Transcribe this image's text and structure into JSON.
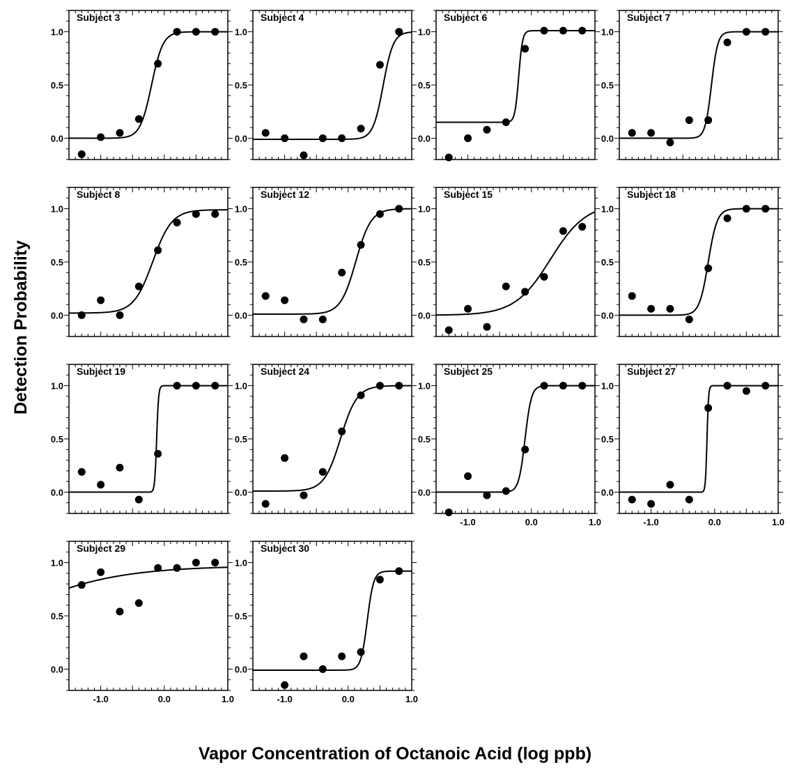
{
  "figure": {
    "xlabel": "Vapor Concentration of Octanoic Acid (log ppb)",
    "ylabel": "Detection Probability"
  },
  "chart_data": [
    {
      "type": "scatter",
      "title": "Subject 3",
      "xlim": [
        -1.5,
        1.0
      ],
      "ylim": [
        -0.2,
        1.2
      ],
      "yticks": [
        0.0,
        0.5,
        1.0
      ],
      "xticks": [],
      "line": "sigmoid",
      "curve": {
        "floor": 0.0,
        "top": 1.0,
        "x50": -0.2,
        "width": 0.09
      },
      "points": [
        [
          -1.3,
          -0.15
        ],
        [
          -1.0,
          0.01
        ],
        [
          -0.7,
          0.05
        ],
        [
          -0.4,
          0.18
        ],
        [
          -0.1,
          0.7
        ],
        [
          0.2,
          1.0
        ],
        [
          0.5,
          1.0
        ],
        [
          0.8,
          1.0
        ]
      ]
    },
    {
      "type": "scatter",
      "title": "Subject 4",
      "xlim": [
        -1.5,
        1.0
      ],
      "ylim": [
        -0.2,
        1.2
      ],
      "yticks": [
        0.0,
        0.5,
        1.0
      ],
      "xticks": [],
      "line": "sigmoid",
      "curve": {
        "floor": -0.01,
        "top": 1.0,
        "x50": 0.55,
        "width": 0.08
      },
      "points": [
        [
          -1.3,
          0.05
        ],
        [
          -1.0,
          0.0
        ],
        [
          -0.7,
          -0.16
        ],
        [
          -0.4,
          0.0
        ],
        [
          -0.1,
          0.0
        ],
        [
          0.2,
          0.09
        ],
        [
          0.5,
          0.69
        ],
        [
          0.8,
          1.0
        ]
      ]
    },
    {
      "type": "scatter",
      "title": "Subject 6",
      "xlim": [
        -1.5,
        1.0
      ],
      "ylim": [
        -0.2,
        1.2
      ],
      "yticks": [
        0.0,
        0.5,
        1.0
      ],
      "xticks": [],
      "line": "sigmoid",
      "curve": {
        "floor": 0.15,
        "top": 1.01,
        "x50": -0.2,
        "width": 0.03
      },
      "points": [
        [
          -1.3,
          -0.18
        ],
        [
          -1.0,
          0.0
        ],
        [
          -0.7,
          0.08
        ],
        [
          -0.4,
          0.15
        ],
        [
          -0.1,
          0.84
        ],
        [
          0.2,
          1.01
        ],
        [
          0.5,
          1.01
        ],
        [
          0.8,
          1.01
        ]
      ]
    },
    {
      "type": "scatter",
      "title": "Subject 7",
      "xlim": [
        -1.5,
        1.0
      ],
      "ylim": [
        -0.2,
        1.2
      ],
      "yticks": [
        0.0,
        0.5,
        1.0
      ],
      "xticks": [],
      "line": "sigmoid",
      "curve": {
        "floor": 0.0,
        "top": 1.0,
        "x50": -0.05,
        "width": 0.05
      },
      "points": [
        [
          -1.3,
          0.05
        ],
        [
          -1.0,
          0.05
        ],
        [
          -0.7,
          -0.04
        ],
        [
          -0.4,
          0.17
        ],
        [
          -0.1,
          0.17
        ],
        [
          0.2,
          0.9
        ],
        [
          0.5,
          1.0
        ],
        [
          0.8,
          1.0
        ]
      ]
    },
    {
      "type": "scatter",
      "title": "Subject 8",
      "xlim": [
        -1.5,
        1.0
      ],
      "ylim": [
        -0.2,
        1.2
      ],
      "yticks": [
        0.0,
        0.5,
        1.0
      ],
      "xticks": [],
      "line": "sigmoid",
      "curve": {
        "floor": 0.02,
        "top": 0.99,
        "x50": -0.18,
        "width": 0.15
      },
      "points": [
        [
          -1.3,
          0.0
        ],
        [
          -1.0,
          0.14
        ],
        [
          -0.7,
          0.0
        ],
        [
          -0.4,
          0.27
        ],
        [
          -0.1,
          0.61
        ],
        [
          0.2,
          0.87
        ],
        [
          0.5,
          0.95
        ],
        [
          0.8,
          0.95
        ]
      ]
    },
    {
      "type": "scatter",
      "title": "Subject 12",
      "xlim": [
        -1.5,
        1.0
      ],
      "ylim": [
        -0.2,
        1.2
      ],
      "yticks": [
        0.0,
        0.5,
        1.0
      ],
      "xticks": [],
      "line": "sigmoid",
      "curve": {
        "floor": 0.01,
        "top": 1.0,
        "x50": 0.12,
        "width": 0.12
      },
      "points": [
        [
          -1.3,
          0.18
        ],
        [
          -1.0,
          0.14
        ],
        [
          -0.7,
          -0.04
        ],
        [
          -0.4,
          -0.04
        ],
        [
          -0.1,
          0.4
        ],
        [
          0.2,
          0.66
        ],
        [
          0.5,
          0.95
        ],
        [
          0.8,
          1.0
        ]
      ]
    },
    {
      "type": "scatter",
      "title": "Subject 15",
      "xlim": [
        -1.5,
        1.0
      ],
      "ylim": [
        -0.2,
        1.2
      ],
      "yticks": [
        0.0,
        0.5,
        1.0
      ],
      "xticks": [],
      "line": "sigmoid",
      "curve": {
        "floor": 0.0,
        "top": 1.05,
        "x50": 0.3,
        "width": 0.28
      },
      "points": [
        [
          -1.3,
          -0.14
        ],
        [
          -1.0,
          0.06
        ],
        [
          -0.7,
          -0.11
        ],
        [
          -0.4,
          0.27
        ],
        [
          -0.1,
          0.22
        ],
        [
          0.2,
          0.36
        ],
        [
          0.5,
          0.79
        ],
        [
          0.8,
          0.83
        ]
      ]
    },
    {
      "type": "scatter",
      "title": "Subject 18",
      "xlim": [
        -1.5,
        1.0
      ],
      "ylim": [
        -0.2,
        1.2
      ],
      "yticks": [
        0.0,
        0.5,
        1.0
      ],
      "xticks": [],
      "line": "sigmoid",
      "curve": {
        "floor": 0.0,
        "top": 1.0,
        "x50": -0.1,
        "width": 0.07
      },
      "points": [
        [
          -1.3,
          0.18
        ],
        [
          -1.0,
          0.06
        ],
        [
          -0.7,
          0.06
        ],
        [
          -0.4,
          -0.04
        ],
        [
          -0.1,
          0.44
        ],
        [
          0.2,
          0.91
        ],
        [
          0.5,
          1.0
        ],
        [
          0.8,
          1.0
        ]
      ]
    },
    {
      "type": "scatter",
      "title": "Subject 19",
      "xlim": [
        -1.5,
        1.0
      ],
      "ylim": [
        -0.2,
        1.2
      ],
      "yticks": [
        0.0,
        0.5,
        1.0
      ],
      "xticks": [],
      "line": "sigmoid",
      "curve": {
        "floor": 0.0,
        "top": 1.0,
        "x50": -0.12,
        "width": 0.015
      },
      "points": [
        [
          -1.3,
          0.19
        ],
        [
          -1.0,
          0.07
        ],
        [
          -0.7,
          0.23
        ],
        [
          -0.4,
          -0.07
        ],
        [
          -0.1,
          0.36
        ],
        [
          0.2,
          1.0
        ],
        [
          0.5,
          1.0
        ],
        [
          0.8,
          1.0
        ]
      ]
    },
    {
      "type": "scatter",
      "title": "Subject 24",
      "xlim": [
        -1.5,
        1.0
      ],
      "ylim": [
        -0.2,
        1.2
      ],
      "yticks": [
        0.0,
        0.5,
        1.0
      ],
      "xticks": [],
      "line": "sigmoid",
      "curve": {
        "floor": 0.01,
        "top": 1.0,
        "x50": -0.12,
        "width": 0.13
      },
      "points": [
        [
          -1.3,
          -0.11
        ],
        [
          -1.0,
          0.32
        ],
        [
          -0.7,
          -0.03
        ],
        [
          -0.4,
          0.19
        ],
        [
          -0.1,
          0.57
        ],
        [
          0.2,
          0.91
        ],
        [
          0.5,
          1.0
        ],
        [
          0.8,
          1.0
        ]
      ]
    },
    {
      "type": "scatter",
      "title": "Subject 25",
      "xlim": [
        -1.5,
        1.0
      ],
      "ylim": [
        -0.2,
        1.2
      ],
      "yticks": [
        0.0,
        0.5,
        1.0
      ],
      "xticks": [
        "-1.0",
        "0.0",
        "1.0"
      ],
      "line": "sigmoid",
      "curve": {
        "floor": 0.0,
        "top": 1.0,
        "x50": -0.1,
        "width": 0.05
      },
      "points": [
        [
          -1.3,
          -0.19
        ],
        [
          -1.0,
          0.15
        ],
        [
          -0.7,
          -0.03
        ],
        [
          -0.4,
          0.01
        ],
        [
          -0.1,
          0.4
        ],
        [
          0.2,
          1.0
        ],
        [
          0.5,
          1.0
        ],
        [
          0.8,
          1.0
        ]
      ]
    },
    {
      "type": "scatter",
      "title": "Subject 27",
      "xlim": [
        -1.5,
        1.0
      ],
      "ylim": [
        -0.2,
        1.2
      ],
      "yticks": [
        0.0,
        0.5,
        1.0
      ],
      "xticks": [
        "-1.0",
        "0.0",
        "1.0"
      ],
      "line": "sigmoid",
      "curve": {
        "floor": 0.0,
        "top": 1.0,
        "x50": -0.12,
        "width": 0.012
      },
      "points": [
        [
          -1.3,
          -0.07
        ],
        [
          -1.0,
          -0.11
        ],
        [
          -0.7,
          0.07
        ],
        [
          -0.4,
          -0.07
        ],
        [
          -0.1,
          0.79
        ],
        [
          0.2,
          1.0
        ],
        [
          0.5,
          0.95
        ],
        [
          0.8,
          1.0
        ]
      ]
    },
    {
      "type": "scatter",
      "title": "Subject 29",
      "xlim": [
        -1.5,
        1.0
      ],
      "ylim": [
        -0.2,
        1.2
      ],
      "yticks": [
        0.0,
        0.5,
        1.0
      ],
      "xticks": [
        "-1.0",
        "0.0",
        "1.0"
      ],
      "line": "sigmoid",
      "curve": {
        "floor": 0.0,
        "top": 0.97,
        "x50": -2.6,
        "width": 0.85
      },
      "points": [
        [
          -1.3,
          0.79
        ],
        [
          -1.0,
          0.91
        ],
        [
          -0.7,
          0.54
        ],
        [
          -0.4,
          0.62
        ],
        [
          -0.1,
          0.95
        ],
        [
          0.2,
          0.95
        ],
        [
          0.5,
          1.0
        ],
        [
          0.8,
          1.0
        ]
      ]
    },
    {
      "type": "scatter",
      "title": "Subject 30",
      "xlim": [
        -1.5,
        1.0
      ],
      "ylim": [
        -0.2,
        1.2
      ],
      "yticks": [
        0.0,
        0.5,
        1.0
      ],
      "xticks": [
        "-1.0",
        "0.0",
        "1.0"
      ],
      "line": "sigmoid",
      "curve": {
        "floor": -0.01,
        "top": 0.92,
        "x50": 0.3,
        "width": 0.05
      },
      "points": [
        [
          -1.0,
          -0.15
        ],
        [
          -0.7,
          0.12
        ],
        [
          -0.4,
          0.0
        ],
        [
          -0.1,
          0.12
        ],
        [
          0.2,
          0.16
        ],
        [
          0.5,
          0.84
        ],
        [
          0.8,
          0.92
        ]
      ]
    }
  ]
}
